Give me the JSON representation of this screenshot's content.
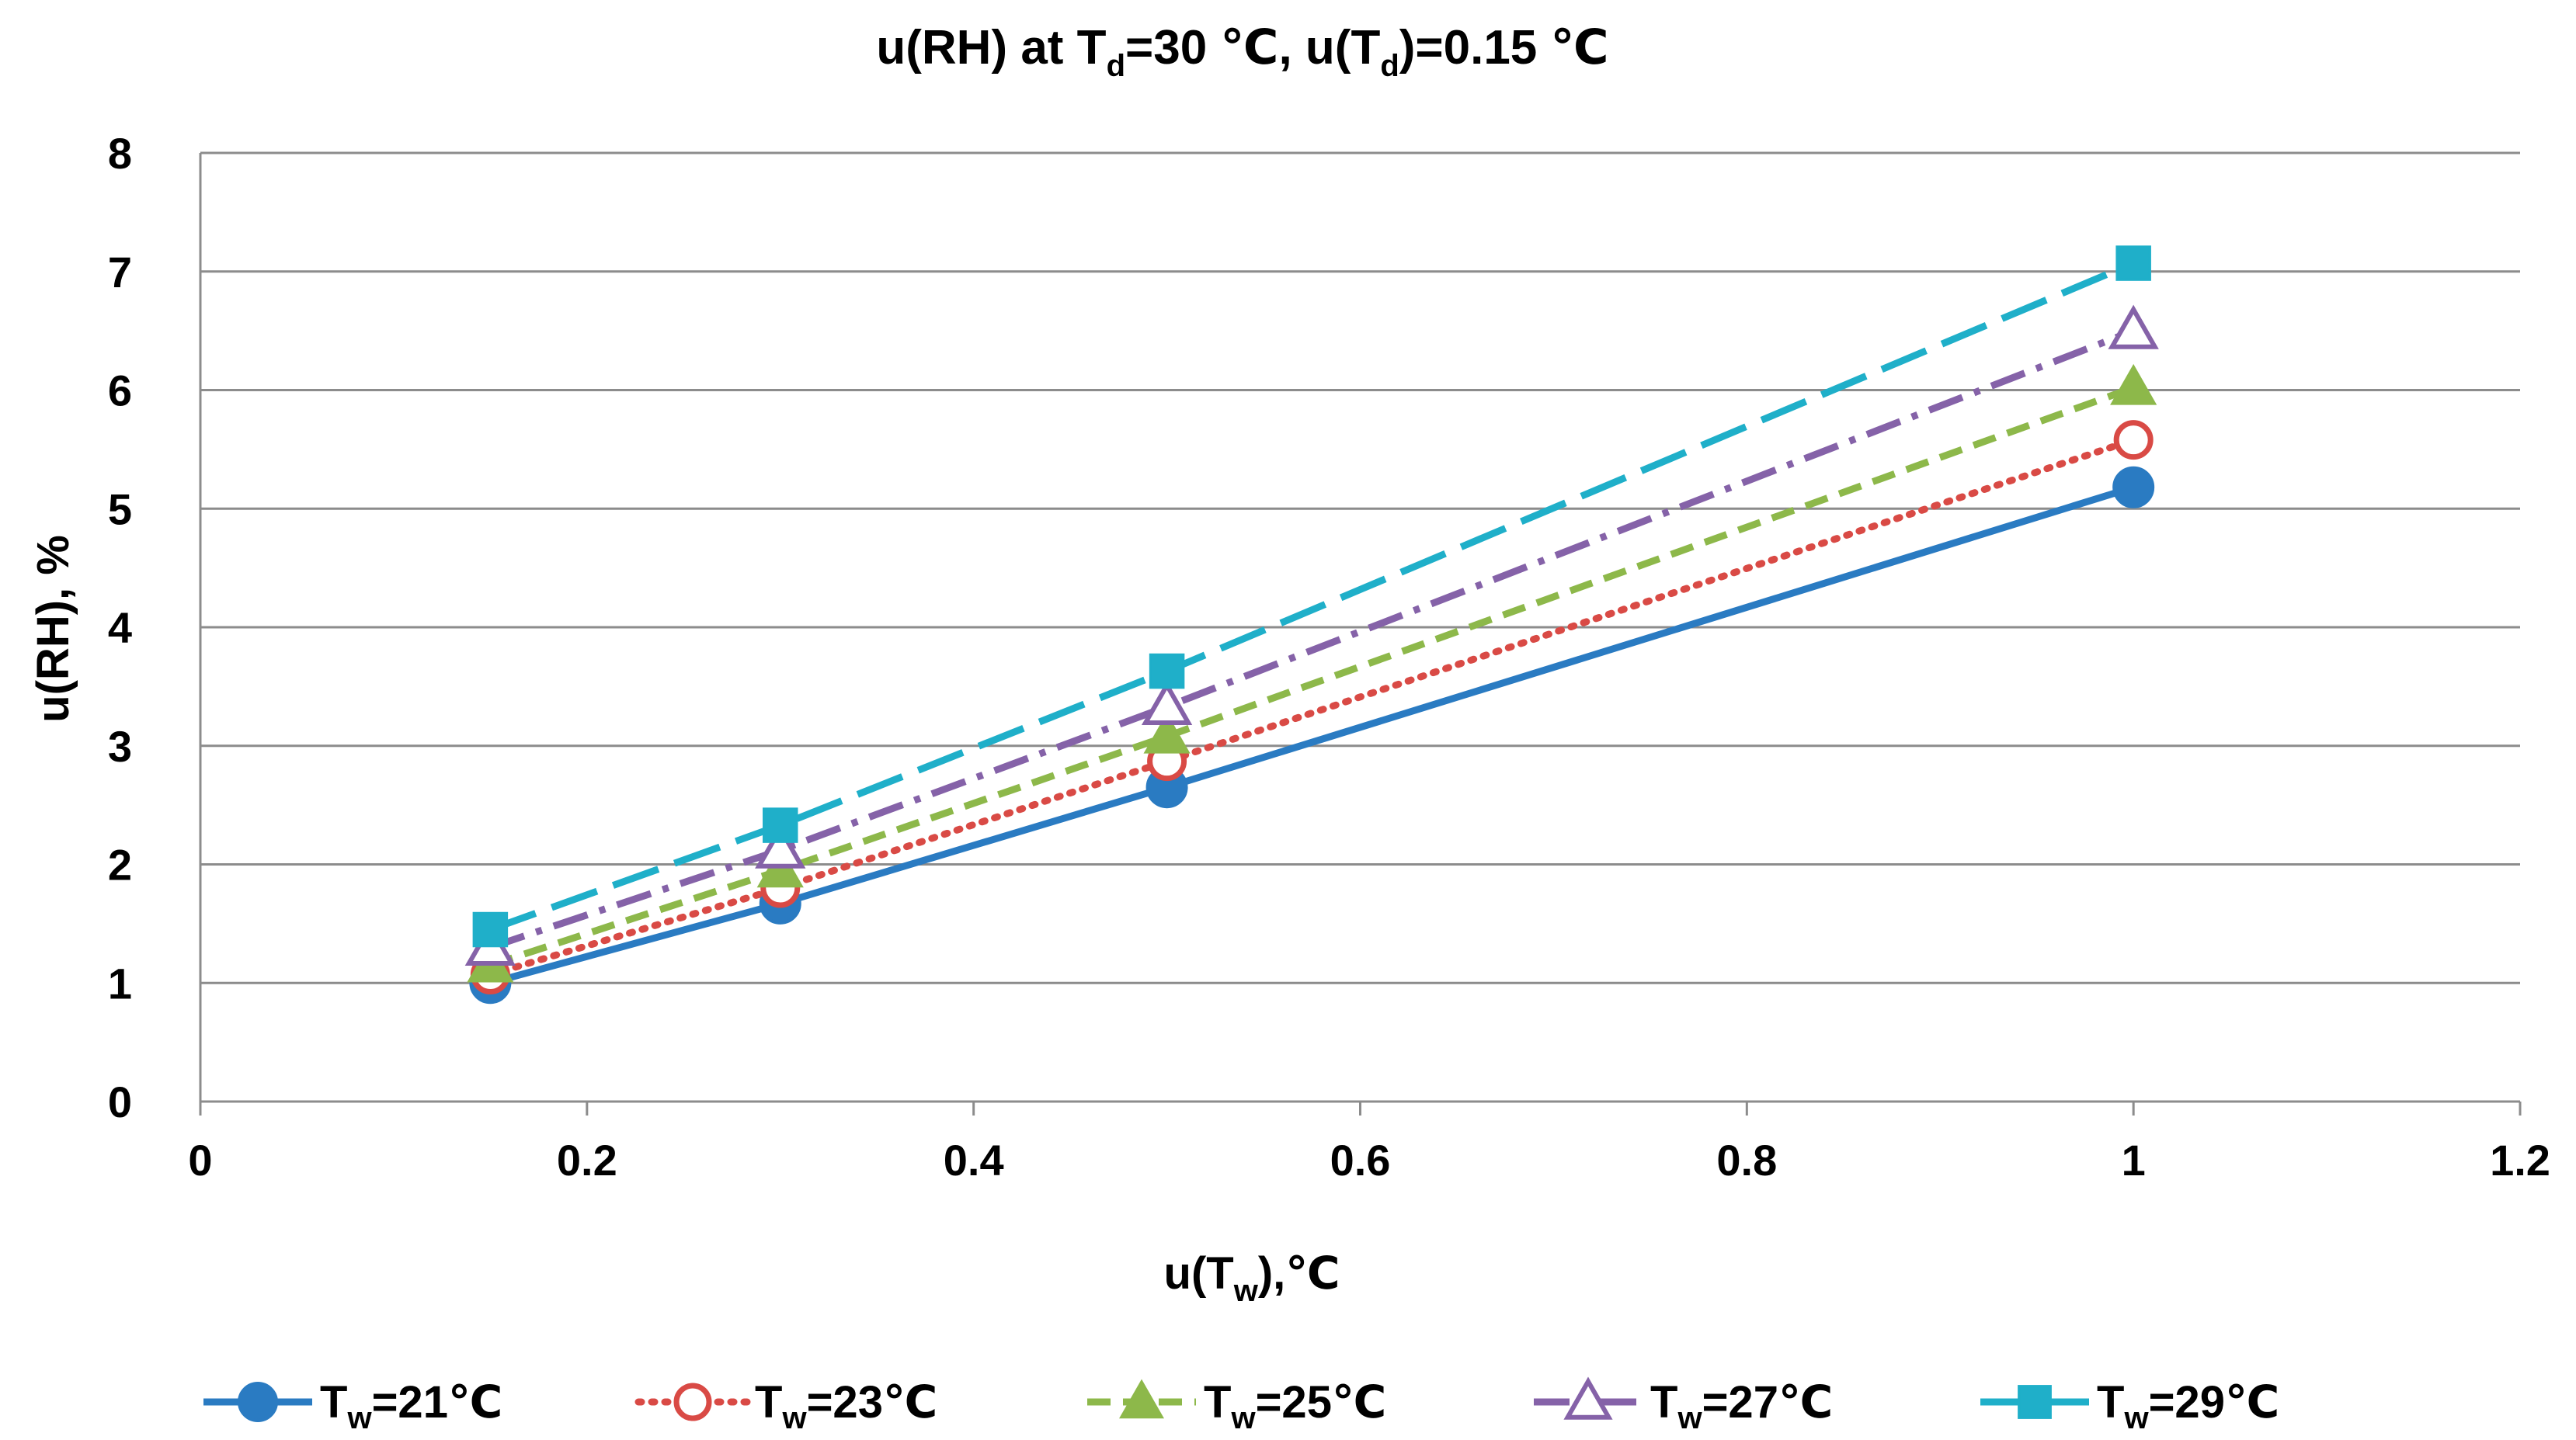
{
  "chart_data": {
    "type": "line",
    "title": {
      "pre": "u(RH) at T",
      "sub": "d",
      "mid": "=30 ℃, u(T",
      "sub2": "d",
      "post": ")=0.15 ℃"
    },
    "xlabel": {
      "pre": "u(T",
      "sub": "w",
      "post": "),℃"
    },
    "ylabel": "u(RH), %",
    "xlim": [
      0,
      1.2
    ],
    "ylim": [
      0,
      8
    ],
    "xticks": [
      "0",
      "0.2",
      "0.4",
      "0.6",
      "0.8",
      "1",
      "1.2"
    ],
    "yticks": [
      "0",
      "1",
      "2",
      "3",
      "4",
      "5",
      "6",
      "7",
      "8"
    ],
    "grid": "horizontal",
    "legend_position": "bottom",
    "x": [
      0.15,
      0.3,
      0.5,
      1.0
    ],
    "series": [
      {
        "label_pre": "T",
        "label_sub": "w",
        "label_post": "=21℃",
        "values": [
          1.0,
          1.67,
          2.65,
          5.18
        ],
        "color": "#2A7BC2",
        "dash": "solid",
        "marker": "circle-filled"
      },
      {
        "label_pre": "T",
        "label_sub": "w",
        "label_post": "=23℃",
        "values": [
          1.07,
          1.8,
          2.87,
          5.58
        ],
        "color": "#D94A45",
        "dash": "dotted",
        "marker": "circle-open"
      },
      {
        "label_pre": "T",
        "label_sub": "w",
        "label_post": "=25℃",
        "values": [
          1.15,
          1.95,
          3.08,
          6.02
        ],
        "color": "#8DB84A",
        "dash": "dashed",
        "marker": "triangle-filled"
      },
      {
        "label_pre": "T",
        "label_sub": "w",
        "label_post": "=27℃",
        "values": [
          1.3,
          2.12,
          3.33,
          6.5
        ],
        "color": "#8562A8",
        "dash": "dashdot",
        "marker": "triangle-open"
      },
      {
        "label_pre": "T",
        "label_sub": "w",
        "label_post": "=29℃",
        "values": [
          1.45,
          2.33,
          3.63,
          7.07
        ],
        "color": "#1FAFC9",
        "dash": "longdash",
        "marker": "square-filled"
      }
    ]
  }
}
